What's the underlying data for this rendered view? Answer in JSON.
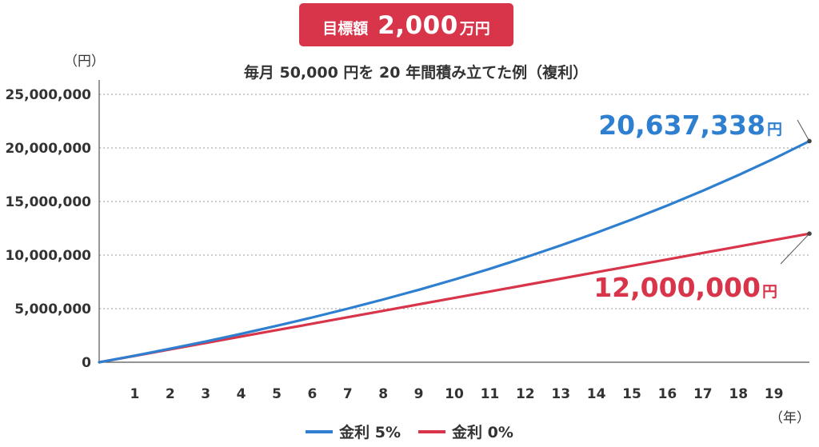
{
  "header_badge": {
    "prefix": "目標額",
    "amount": "2,000",
    "unit": "万円",
    "color": "#d8344a"
  },
  "chart_data": {
    "type": "line",
    "title": "毎月 50,000 円を 20 年間積み立てた例（複利）",
    "y_unit_label": "（円）",
    "x_unit_label": "（年）",
    "ylim": [
      0,
      25000000
    ],
    "xlim": [
      0,
      20
    ],
    "y_ticks": [
      {
        "value": 0,
        "label": "0"
      },
      {
        "value": 5000000,
        "label": "5,000,000"
      },
      {
        "value": 10000000,
        "label": "10,000,000"
      },
      {
        "value": 15000000,
        "label": "15,000,000"
      },
      {
        "value": 20000000,
        "label": "20,000,000"
      },
      {
        "value": 25000000,
        "label": "25,000,000"
      }
    ],
    "x_ticks": [
      "1",
      "2",
      "3",
      "4",
      "5",
      "6",
      "7",
      "8",
      "9",
      "10",
      "11",
      "12",
      "13",
      "14",
      "15",
      "16",
      "17",
      "18",
      "19"
    ],
    "grid": "horizontal dashed",
    "legend_position": "bottom",
    "series": [
      {
        "name": "金利 5%",
        "color": "#2f7fd0",
        "x": [
          0,
          1,
          2,
          3,
          4,
          5,
          6,
          7,
          8,
          9,
          10,
          11,
          12,
          13,
          14,
          15,
          16,
          17,
          18,
          19,
          20
        ],
        "values": [
          0,
          614000,
          1259000,
          1936000,
          2648000,
          3400000,
          4180000,
          5000000,
          5860000,
          6760000,
          7720000,
          8720000,
          9780000,
          10900000,
          12080000,
          13320000,
          14630000,
          16010000,
          17460000,
          19000000,
          20637338
        ],
        "end_label": {
          "number": "20,637,338",
          "unit": "円"
        }
      },
      {
        "name": "金利 0%",
        "color": "#d8344a",
        "x": [
          0,
          1,
          2,
          3,
          4,
          5,
          6,
          7,
          8,
          9,
          10,
          11,
          12,
          13,
          14,
          15,
          16,
          17,
          18,
          19,
          20
        ],
        "values": [
          0,
          600000,
          1200000,
          1800000,
          2400000,
          3000000,
          3600000,
          4200000,
          4800000,
          5400000,
          6000000,
          6600000,
          7200000,
          7800000,
          8400000,
          9000000,
          9600000,
          10200000,
          10800000,
          11400000,
          12000000
        ],
        "end_label": {
          "number": "12,000,000",
          "unit": "円"
        }
      }
    ]
  }
}
